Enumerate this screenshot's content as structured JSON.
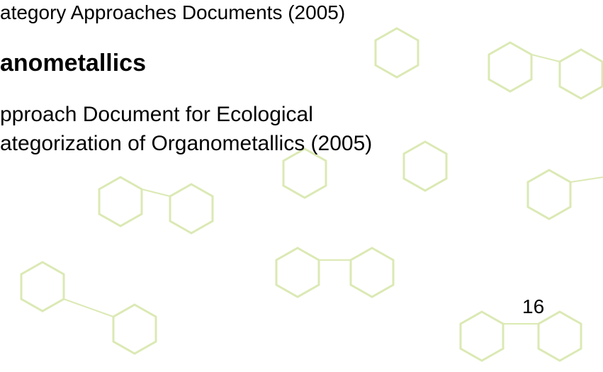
{
  "header": {
    "text": "ategory Approaches Documents (2005)"
  },
  "heading": "anometallics",
  "body": [
    "pproach Document for Ecological",
    "ategorization of Organometallics (2005)"
  ],
  "page_number": "16"
}
